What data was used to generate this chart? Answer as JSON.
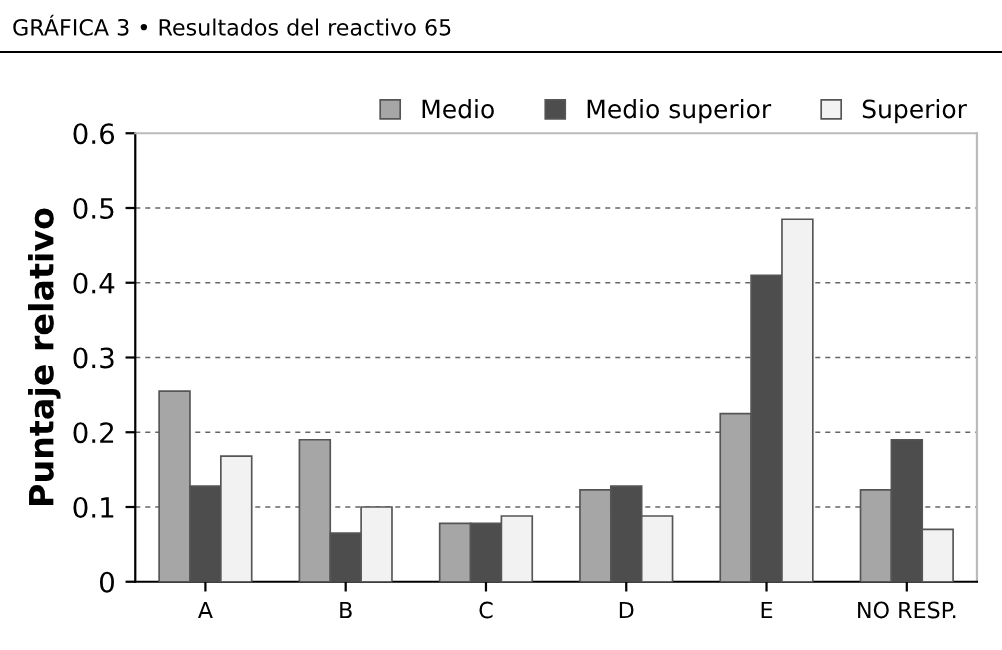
{
  "chart_data": {
    "type": "bar",
    "title": "GRÁFICA 3 • Resultados del reactivo 65",
    "ylabel": "Puntaje relativo",
    "categories": [
      "A",
      "B",
      "C",
      "D",
      "E",
      "NO RESP."
    ],
    "series": [
      {
        "name": "Medio",
        "color": "#a6a6a6",
        "values": [
          0.255,
          0.19,
          0.078,
          0.123,
          0.225,
          0.123
        ]
      },
      {
        "name": "Medio superior",
        "color": "#4d4d4d",
        "values": [
          0.128,
          0.065,
          0.078,
          0.128,
          0.41,
          0.19
        ]
      },
      {
        "name": "Superior",
        "color": "#f2f2f2",
        "values": [
          0.168,
          0.1,
          0.088,
          0.088,
          0.485,
          0.07
        ]
      }
    ],
    "ylim": [
      0,
      0.6
    ],
    "yticks": [
      {
        "value": 0,
        "label": "0"
      },
      0.1,
      0.2,
      0.3,
      0.4,
      0.5,
      0.6
    ],
    "grid": "y",
    "legend": "top right"
  }
}
